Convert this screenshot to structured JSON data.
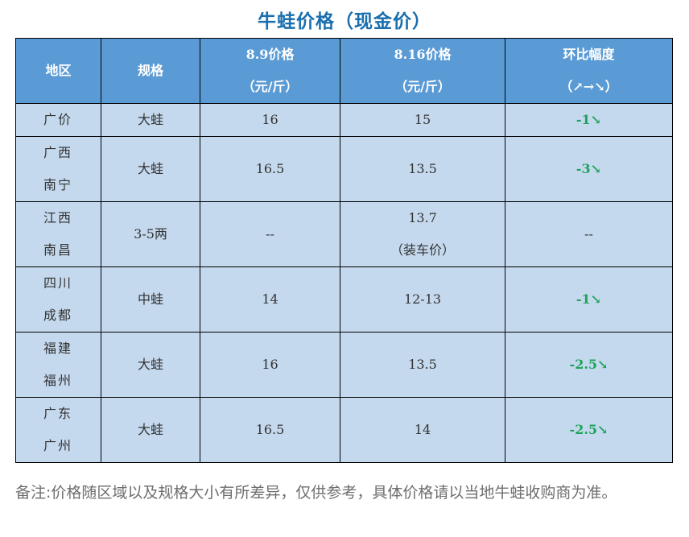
{
  "title": "牛蛙价格（现金价）",
  "table": {
    "headers": {
      "region": "地区",
      "spec": "规格",
      "price1_line1": "8.9价格",
      "price1_line2": "（元/斤）",
      "price2_line1": "8.16价格",
      "price2_line2": "（元/斤）",
      "change_line1": "环比幅度",
      "change_line2": "（↗→↘）"
    },
    "rows": [
      {
        "region_line1": "广价",
        "region_line2": "",
        "spec": "大蛙",
        "price1": "16",
        "price2_line1": "15",
        "price2_line2": "",
        "change": "-1↘"
      },
      {
        "region_line1": "广西",
        "region_line2": "南宁",
        "spec": "大蛙",
        "price1": "16.5",
        "price2_line1": "13.5",
        "price2_line2": "",
        "change": "-3↘"
      },
      {
        "region_line1": "江西",
        "region_line2": "南昌",
        "spec": "3-5两",
        "price1": "--",
        "price2_line1": "13.7",
        "price2_line2": "（装车价）",
        "change": "--"
      },
      {
        "region_line1": "四川",
        "region_line2": "成都",
        "spec": "中蛙",
        "price1": "14",
        "price2_line1": "12-13",
        "price2_line2": "",
        "change": "-1↘"
      },
      {
        "region_line1": "福建",
        "region_line2": "福州",
        "spec": "大蛙",
        "price1": "16",
        "price2_line1": "13.5",
        "price2_line2": "",
        "change": "-2.5↘"
      },
      {
        "region_line1": "广东",
        "region_line2": "广州",
        "spec": "大蛙",
        "price1": "16.5",
        "price2_line1": "14",
        "price2_line2": "",
        "change": "-2.5↘"
      }
    ]
  },
  "note": "备注:价格随区域以及规格大小有所差异，仅供参考，具体价格请以当地牛蛙收购商为准。",
  "colors": {
    "title": "#1a6fae",
    "header_bg": "#5b9bd5",
    "cell_bg": "#c5d9ee",
    "change_down": "#1ea35a",
    "note": "#6e6e6e"
  }
}
